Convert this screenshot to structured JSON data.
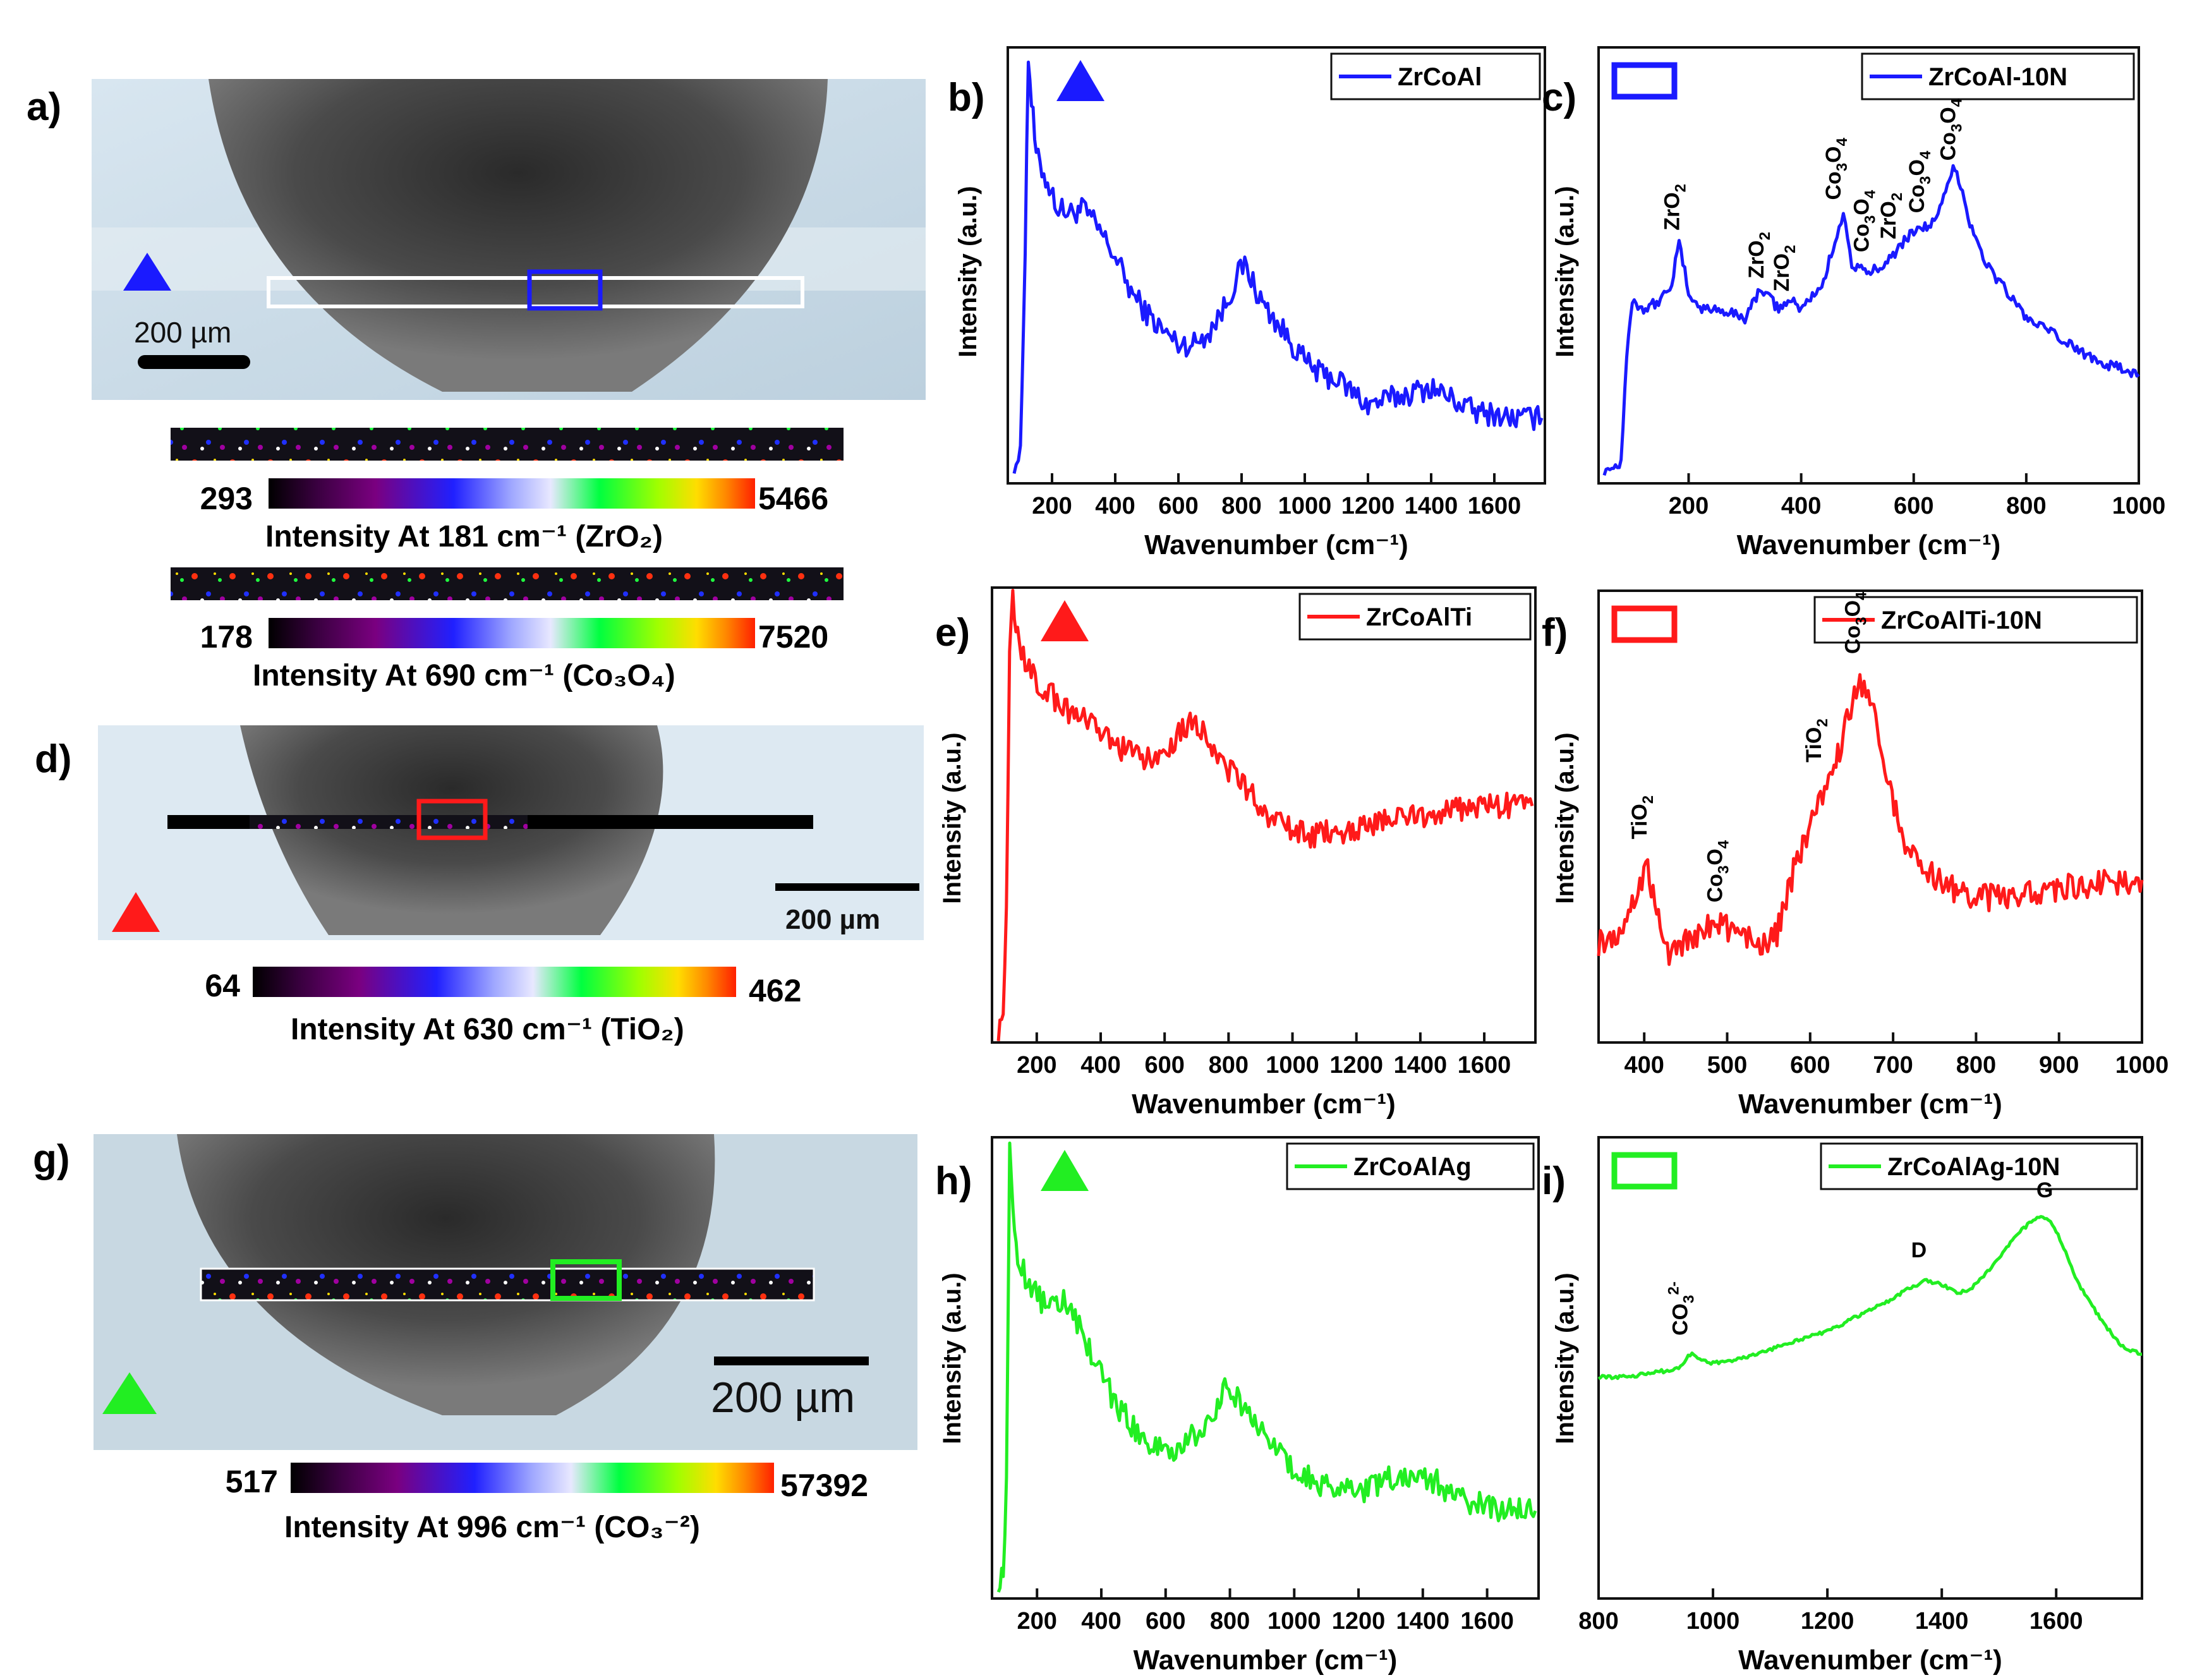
{
  "figure": {
    "panels": {
      "a": {
        "label": "a)",
        "scale_bar": "200 µm",
        "marker": "blue-triangle",
        "colorbars": [
          {
            "min": "293",
            "max": "5466",
            "title": "Intensity At 181 cm⁻¹ (ZrO₂)"
          },
          {
            "min": "178",
            "max": "7520",
            "title": "Intensity At 690 cm⁻¹ (Co₃O₄)"
          }
        ]
      },
      "d": {
        "label": "d)",
        "scale_bar": "200 µm",
        "marker": "red-triangle",
        "colorbars": [
          {
            "min": "64",
            "max": "462",
            "title": "Intensity At 630 cm⁻¹ (TiO₂)"
          }
        ]
      },
      "g": {
        "label": "g)",
        "scale_bar": "200 µm",
        "marker": "green-triangle",
        "colorbars": [
          {
            "min": "517",
            "max": "57392",
            "title": "Intensity At 996 cm⁻¹ (CO₃⁻²)"
          }
        ]
      }
    },
    "colors": {
      "blue": "#1a1aff",
      "red": "#ff1a1a",
      "green": "#22ee22"
    },
    "colormap": [
      "#000000",
      "#3a0040",
      "#7a0080",
      "#2020ff",
      "#a0a8ff",
      "#e8e8ff",
      "#00ff40",
      "#a0ff00",
      "#ffdd00",
      "#ff8800",
      "#ff2000"
    ]
  },
  "chart_data": [
    {
      "id": "b",
      "label": "b)",
      "type": "line",
      "legend": "ZrCoAl",
      "marker": "filled-triangle",
      "color": "#1a1aff",
      "xlabel": "Wavenumber (cm⁻¹)",
      "ylabel": "Intensity (a.u.)",
      "xlim": [
        60,
        1760
      ],
      "xticks": [
        "200",
        "400",
        "600",
        "800",
        "1000",
        "1200",
        "1400",
        "1600"
      ],
      "x": [
        80,
        100,
        115,
        125,
        135,
        150,
        180,
        220,
        260,
        300,
        350,
        400,
        450,
        500,
        550,
        600,
        650,
        700,
        750,
        790,
        810,
        830,
        860,
        900,
        950,
        1000,
        1050,
        1100,
        1150,
        1200,
        1250,
        1300,
        1350,
        1400,
        1450,
        1500,
        1550,
        1600,
        1650,
        1700,
        1750
      ],
      "y": [
        0.05,
        0.06,
        0.55,
        0.98,
        0.88,
        0.75,
        0.7,
        0.63,
        0.62,
        0.63,
        0.58,
        0.52,
        0.44,
        0.39,
        0.35,
        0.32,
        0.32,
        0.35,
        0.41,
        0.48,
        0.5,
        0.47,
        0.42,
        0.38,
        0.33,
        0.28,
        0.25,
        0.24,
        0.21,
        0.18,
        0.19,
        0.2,
        0.21,
        0.22,
        0.2,
        0.18,
        0.16,
        0.16,
        0.15,
        0.15,
        0.15
      ]
    },
    {
      "id": "c",
      "label": "c)",
      "type": "line",
      "legend": "ZrCoAl-10N",
      "marker": "open-rectangle",
      "color": "#1a1aff",
      "xlabel": "Wavenumber (cm⁻¹)",
      "ylabel": "Intensity (a.u.)",
      "xlim": [
        40,
        1000
      ],
      "xticks": [
        "200",
        "400",
        "600",
        "800",
        "1000"
      ],
      "x": [
        50,
        70,
        80,
        90,
        100,
        120,
        150,
        170,
        183,
        200,
        220,
        250,
        300,
        330,
        340,
        360,
        380,
        400,
        440,
        460,
        475,
        490,
        520,
        560,
        600,
        640,
        670,
        680,
        700,
        730,
        760,
        800,
        850,
        900,
        950,
        1000
      ],
      "y": [
        0.03,
        0.04,
        0.05,
        0.3,
        0.42,
        0.4,
        0.42,
        0.46,
        0.55,
        0.44,
        0.4,
        0.4,
        0.38,
        0.45,
        0.43,
        0.4,
        0.42,
        0.4,
        0.46,
        0.56,
        0.62,
        0.5,
        0.48,
        0.52,
        0.58,
        0.6,
        0.72,
        0.7,
        0.6,
        0.5,
        0.45,
        0.38,
        0.34,
        0.3,
        0.27,
        0.25
      ],
      "annotations": [
        {
          "text": "ZrO",
          "sub": "2",
          "x": 183,
          "y": 0.58
        },
        {
          "text": "ZrO",
          "sub": "2",
          "x": 333,
          "y": 0.47
        },
        {
          "text": "ZrO",
          "sub": "2",
          "x": 378,
          "y": 0.44
        },
        {
          "text": "Co",
          "sub": "3",
          "text2": "O",
          "sub2": "4",
          "x": 470,
          "y": 0.65
        },
        {
          "text": "Co",
          "sub": "3",
          "text2": "O",
          "sub2": "4",
          "x": 520,
          "y": 0.53
        },
        {
          "text": "ZrO",
          "sub": "2",
          "x": 568,
          "y": 0.56
        },
        {
          "text": "Co",
          "sub": "3",
          "text2": "O",
          "sub2": "4",
          "x": 618,
          "y": 0.62
        },
        {
          "text": "Co",
          "sub": "3",
          "text2": "O",
          "sub2": "4",
          "x": 674,
          "y": 0.74
        }
      ]
    },
    {
      "id": "e",
      "label": "e)",
      "type": "line",
      "legend": "ZrCoAlTi",
      "marker": "filled-triangle",
      "color": "#ff1a1a",
      "xlabel": "Wavenumber (cm⁻¹)",
      "ylabel": "Intensity (a.u.)",
      "xlim": [
        60,
        1760
      ],
      "xticks": [
        "200",
        "400",
        "600",
        "800",
        "1000",
        "1200",
        "1400",
        "1600"
      ],
      "x": [
        80,
        95,
        105,
        115,
        125,
        140,
        170,
        220,
        300,
        400,
        500,
        560,
        620,
        680,
        720,
        760,
        800,
        850,
        900,
        950,
        1000,
        1050,
        1100,
        1200,
        1300,
        1400,
        1500,
        1600,
        1700,
        1750
      ],
      "y": [
        0.03,
        0.05,
        0.3,
        0.85,
        0.97,
        0.9,
        0.82,
        0.78,
        0.73,
        0.68,
        0.63,
        0.62,
        0.66,
        0.71,
        0.69,
        0.64,
        0.6,
        0.56,
        0.52,
        0.48,
        0.47,
        0.45,
        0.46,
        0.47,
        0.49,
        0.5,
        0.51,
        0.52,
        0.52,
        0.52
      ]
    },
    {
      "id": "f",
      "label": "f)",
      "type": "line",
      "legend": "ZrCoAlTi-10N",
      "marker": "open-rectangle",
      "color": "#ff1a1a",
      "xlabel": "Wavenumber (cm⁻¹)",
      "ylabel": "Intensity (a.u.)",
      "xlim": [
        345,
        1000
      ],
      "xticks": [
        "400",
        "500",
        "600",
        "700",
        "800",
        "900",
        "1000"
      ],
      "x": [
        345,
        370,
        390,
        402,
        415,
        430,
        450,
        470,
        490,
        510,
        540,
        560,
        580,
        600,
        610,
        620,
        640,
        660,
        670,
        690,
        710,
        740,
        780,
        820,
        860,
        900,
        950,
        1000
      ],
      "y": [
        0.22,
        0.24,
        0.32,
        0.4,
        0.3,
        0.2,
        0.22,
        0.25,
        0.27,
        0.24,
        0.22,
        0.24,
        0.38,
        0.48,
        0.52,
        0.55,
        0.68,
        0.8,
        0.78,
        0.62,
        0.45,
        0.38,
        0.33,
        0.32,
        0.33,
        0.34,
        0.35,
        0.36
      ],
      "annotations": [
        {
          "text": "TiO",
          "sub": "2",
          "x": 403,
          "y": 0.45
        },
        {
          "text": "Co",
          "sub": "3",
          "text2": "O",
          "sub2": "4",
          "x": 494,
          "y": 0.31
        },
        {
          "text": "TiO",
          "sub": "2",
          "x": 613,
          "y": 0.62
        },
        {
          "text": "Co",
          "sub": "3",
          "text2": "O",
          "sub2": "4",
          "x": 660,
          "y": 0.86
        }
      ]
    },
    {
      "id": "h",
      "label": "h)",
      "type": "line",
      "legend": "ZrCoAlAg",
      "marker": "filled-triangle",
      "color": "#22ee22",
      "xlabel": "Wavenumber (cm⁻¹)",
      "ylabel": "Intensity (a.u.)",
      "xlim": [
        60,
        1760
      ],
      "xticks": [
        "200",
        "400",
        "600",
        "800",
        "1000",
        "1200",
        "1400",
        "1600"
      ],
      "x": [
        80,
        95,
        105,
        115,
        125,
        140,
        170,
        220,
        260,
        300,
        350,
        400,
        450,
        500,
        550,
        600,
        650,
        700,
        750,
        790,
        810,
        830,
        860,
        900,
        950,
        1000,
        1050,
        1100,
        1200,
        1300,
        1350,
        1400,
        1450,
        1500,
        1600,
        1700,
        1750
      ],
      "y": [
        0.04,
        0.05,
        0.25,
        0.98,
        0.85,
        0.75,
        0.68,
        0.64,
        0.65,
        0.64,
        0.56,
        0.48,
        0.42,
        0.37,
        0.33,
        0.32,
        0.33,
        0.36,
        0.41,
        0.47,
        0.45,
        0.43,
        0.4,
        0.36,
        0.32,
        0.28,
        0.26,
        0.24,
        0.23,
        0.26,
        0.27,
        0.26,
        0.25,
        0.22,
        0.2,
        0.19,
        0.19
      ]
    },
    {
      "id": "i",
      "label": "i)",
      "type": "line",
      "legend": "ZrCoAlAg-10N",
      "marker": "open-rectangle",
      "color": "#22ee22",
      "xlabel": "Wavenumber (cm⁻¹)",
      "ylabel": "Intensity (a.u.)",
      "xlim": [
        800,
        1750
      ],
      "xticks": [
        "800",
        "1000",
        "1200",
        "1400",
        "1600"
      ],
      "x": [
        800,
        850,
        900,
        940,
        960,
        980,
        1000,
        1050,
        1100,
        1150,
        1200,
        1250,
        1300,
        1340,
        1370,
        1400,
        1430,
        1460,
        1500,
        1540,
        1570,
        1590,
        1610,
        1640,
        1680,
        1720,
        1750
      ],
      "y": [
        0.48,
        0.48,
        0.49,
        0.5,
        0.53,
        0.52,
        0.51,
        0.52,
        0.54,
        0.56,
        0.58,
        0.61,
        0.64,
        0.67,
        0.69,
        0.68,
        0.66,
        0.68,
        0.74,
        0.8,
        0.83,
        0.82,
        0.77,
        0.68,
        0.6,
        0.54,
        0.53
      ],
      "annotations": [
        {
          "text": "CO",
          "sub": "3",
          "sup": "2-",
          "x": 955,
          "y": 0.57,
          "vertical": true
        },
        {
          "text": "D",
          "x": 1360,
          "y": 0.74,
          "vertical": false
        },
        {
          "text": "G",
          "x": 1580,
          "y": 0.87,
          "vertical": false
        }
      ]
    }
  ]
}
